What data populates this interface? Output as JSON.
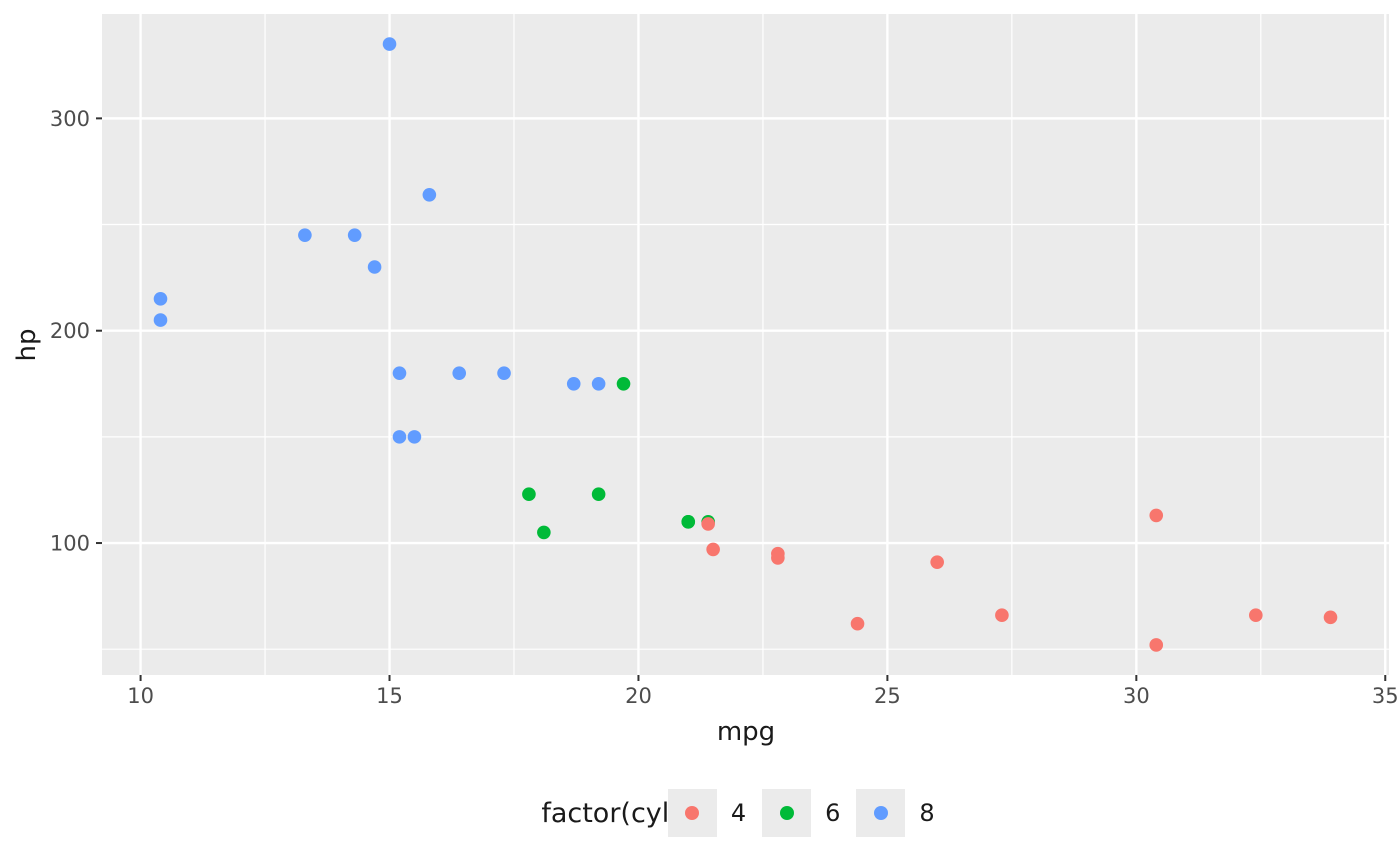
{
  "chart_data": {
    "type": "scatter",
    "xlabel": "mpg",
    "ylabel": "hp",
    "x_ticks": [
      10,
      15,
      20,
      25,
      30,
      35
    ],
    "y_ticks": [
      100,
      200,
      300
    ],
    "x_minor": [
      12.5,
      17.5,
      22.5,
      27.5,
      32.5
    ],
    "y_minor": [
      50,
      150,
      250
    ],
    "xlim": [
      9.225,
      35.075
    ],
    "ylim": [
      37.85,
      349.15
    ],
    "grid": true,
    "legend": {
      "title": "factor(cyl)",
      "position": "bottom",
      "entries": [
        {
          "label": "4",
          "color": "#F8766D"
        },
        {
          "label": "6",
          "color": "#00BA38"
        },
        {
          "label": "8",
          "color": "#619CFF"
        }
      ]
    },
    "series": [
      {
        "name": "6",
        "color": "#00BA38",
        "points": [
          [
            17.8,
            123
          ],
          [
            18.1,
            105
          ],
          [
            19.2,
            123
          ],
          [
            19.7,
            175
          ],
          [
            21.0,
            110
          ],
          [
            21.0,
            110
          ],
          [
            21.4,
            110
          ]
        ]
      },
      {
        "name": "8",
        "color": "#619CFF",
        "points": [
          [
            10.4,
            205
          ],
          [
            10.4,
            215
          ],
          [
            13.3,
            245
          ],
          [
            14.3,
            245
          ],
          [
            14.7,
            230
          ],
          [
            15.0,
            335
          ],
          [
            15.2,
            150
          ],
          [
            15.2,
            180
          ],
          [
            15.5,
            150
          ],
          [
            15.8,
            264
          ],
          [
            16.4,
            180
          ],
          [
            17.3,
            180
          ],
          [
            18.7,
            175
          ],
          [
            19.2,
            175
          ]
        ]
      },
      {
        "name": "4",
        "color": "#F8766D",
        "points": [
          [
            21.4,
            109
          ],
          [
            21.5,
            97
          ],
          [
            22.8,
            93
          ],
          [
            22.8,
            95
          ],
          [
            24.4,
            62
          ],
          [
            26.0,
            91
          ],
          [
            27.3,
            66
          ],
          [
            30.4,
            52
          ],
          [
            30.4,
            113
          ],
          [
            32.4,
            66
          ],
          [
            33.9,
            65
          ]
        ]
      }
    ],
    "colors": {
      "panel_bg": "#EBEBEB",
      "grid": "#FFFFFF",
      "tick_text": "#4D4D4D",
      "tick_mark": "#333333",
      "axis_title": "#1A1A1A",
      "legend_key_bg": "#EBEBEB"
    }
  }
}
